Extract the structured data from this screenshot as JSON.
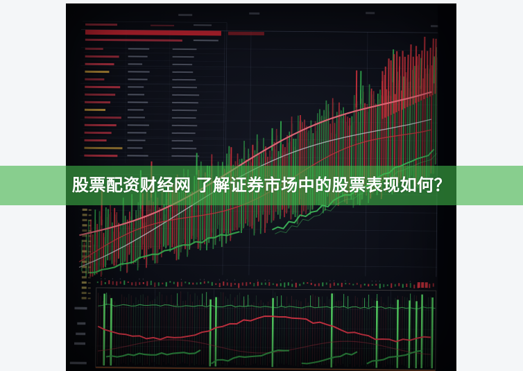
{
  "page": {
    "background": "#f4f6f8"
  },
  "banner": {
    "title": "股票配资财经网 了解证券市场中的股票表现如何？",
    "background": "rgba(64,180,72,0.60)",
    "text_color": "#ffffff"
  },
  "hero": {
    "description": "photo of a stock trading terminal screen with quote table, rising candlestick chart and volume panel",
    "colors": {
      "photo_bg_center": "#141722",
      "photo_bg_edge": "#050609",
      "grid": "#8794b8",
      "candle_green": "#2f9e4a",
      "candle_red": "#c0303a",
      "bright_green": "#54d162",
      "line_pink": "#e06878",
      "line_white": "#c8ccd4",
      "line_red": "#c23540",
      "line_green": "#3db45a",
      "table_highlight_red": "#c22430",
      "table_label_red": "#b03040",
      "table_label_yellow": "#c79a3a",
      "table_value_gray": "#9aa0b4",
      "axis_yellow": "#b7a457",
      "panel_bottom_brown": "#8a4a28",
      "panel_red_line": "#d23545",
      "panel_green_line": "#37a84e",
      "bezel": "#04050a"
    }
  }
}
